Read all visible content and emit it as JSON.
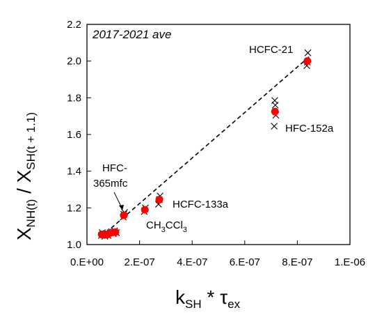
{
  "chart_data": {
    "type": "scatter",
    "title": "",
    "inset_label": "2017-2021 ave",
    "xlabel_main": "k",
    "xlabel_sub": "SH",
    "xlabel_mid": " * τ",
    "xlabel_sub2": "ex",
    "ylabel_num": "X",
    "ylabel_num_sub": "NH(t)",
    "ylabel_sep": " / X",
    "ylabel_den_sub": "SH(t + 1.1)",
    "xlim": [
      0,
      1e-06
    ],
    "ylim": [
      1.0,
      2.2
    ],
    "x_ticks": [
      0,
      2e-07,
      4e-07,
      6e-07,
      8e-07,
      1e-06
    ],
    "x_tick_labels": [
      "0.E+00",
      "2.E-07",
      "4.E-07",
      "6.E-07",
      "8.E-07",
      "1.E-06"
    ],
    "y_ticks": [
      1.0,
      1.2,
      1.4,
      1.6,
      1.8,
      2.0,
      2.2
    ],
    "y_tick_labels": [
      "1.0",
      "1.2",
      "1.4",
      "1.6",
      "1.8",
      "2.0",
      "2.2"
    ],
    "grid": false,
    "colors": {
      "mean_marker": "#ff0000",
      "year_marker": "#000000",
      "fit_line": "#000000"
    },
    "series": [
      {
        "marker": "x",
        "points": [
          [
            5.5e-08,
            1.05
          ],
          [
            5.8e-08,
            1.065
          ],
          [
            6.4e-08,
            1.055
          ],
          [
            6.8e-08,
            1.045
          ],
          [
            7.3e-08,
            1.06
          ],
          [
            8e-08,
            1.05
          ],
          [
            8.8e-08,
            1.065
          ],
          [
            9.3e-08,
            1.07
          ],
          [
            1e-07,
            1.06
          ],
          [
            1.05e-07,
            1.075
          ],
          [
            1.12e-07,
            1.065
          ],
          [
            1.38e-07,
            1.15
          ],
          [
            1.43e-07,
            1.175
          ],
          [
            1.4e-07,
            1.165
          ],
          [
            2.18e-07,
            1.18
          ],
          [
            2.22e-07,
            1.2
          ],
          [
            2.72e-07,
            1.22
          ],
          [
            2.78e-07,
            1.265
          ],
          [
            2.75e-07,
            1.245
          ],
          [
            7.12e-07,
            1.645
          ],
          [
            7.16e-07,
            1.76
          ],
          [
            7.14e-07,
            1.785
          ],
          [
            7.18e-07,
            1.705
          ],
          [
            8.36e-07,
            1.975
          ],
          [
            8.4e-07,
            2.045
          ],
          [
            8.38e-07,
            1.995
          ]
        ]
      },
      {
        "marker": "filled-circle",
        "points": [
          [
            5.6e-08,
            1.055
          ],
          [
            6.6e-08,
            1.057
          ],
          [
            7.8e-08,
            1.055
          ],
          [
            9.2e-08,
            1.065
          ],
          [
            1.08e-07,
            1.068
          ],
          [
            1.4e-07,
            1.16
          ],
          [
            2.2e-07,
            1.19
          ],
          [
            2.75e-07,
            1.245
          ],
          [
            7.15e-07,
            1.725
          ],
          [
            8.38e-07,
            2.0
          ]
        ]
      },
      {
        "marker": "dashed-line",
        "points": [
          [
            5.2e-08,
            1.04
          ],
          [
            8.5e-07,
            2.03
          ]
        ]
      }
    ],
    "annotations": [
      {
        "text": "HCFC-21",
        "x": 8.38e-07,
        "y": 2.0
      },
      {
        "text": "HFC-152a",
        "x": 7.15e-07,
        "y": 1.725
      },
      {
        "text": "HCFC-133a",
        "x": 2.75e-07,
        "y": 1.245
      },
      {
        "text_main": "CH",
        "sub1": "3",
        "text_mid": "CCl",
        "sub2": "3",
        "x": 2.2e-07,
        "y": 1.19
      },
      {
        "text_line1": "HFC-",
        "text_line2": "365mfc",
        "x": 1.4e-07,
        "y": 1.16
      }
    ]
  }
}
